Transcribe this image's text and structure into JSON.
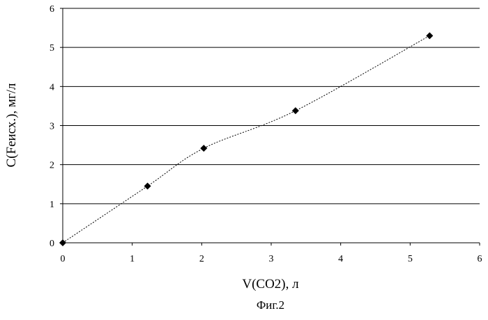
{
  "chart_data": {
    "type": "scatter",
    "title": "",
    "xlabel": "V(CO2), л",
    "ylabel": "C(Feисх.), мг/л",
    "xlim": [
      0,
      6
    ],
    "ylim": [
      0,
      6
    ],
    "x_ticks": [
      "0",
      "1",
      "2",
      "3",
      "4",
      "5",
      "6"
    ],
    "y_ticks": [
      "0",
      "1",
      "2",
      "3",
      "4",
      "5",
      "6"
    ],
    "grid": "horizontal",
    "legend": "none",
    "series": [
      {
        "x": [
          0,
          1.22,
          2.03,
          3.35,
          5.28
        ],
        "y": [
          0,
          1.45,
          2.42,
          3.38,
          5.3
        ],
        "marker": "diamond",
        "line": "dotted smooth"
      }
    ],
    "caption": "Фиг.2"
  },
  "colors": {
    "marker": "#000000",
    "line": "#000000",
    "grid": "#000000"
  }
}
